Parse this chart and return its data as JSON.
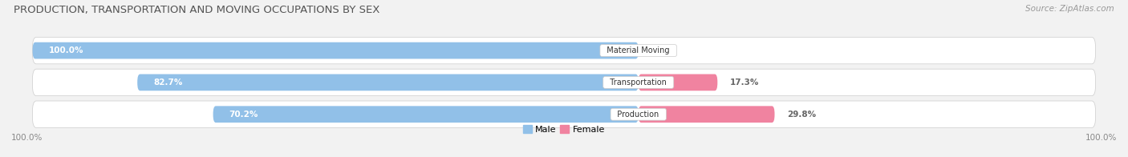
{
  "title": "PRODUCTION, TRANSPORTATION AND MOVING OCCUPATIONS BY SEX",
  "source": "Source: ZipAtlas.com",
  "categories": [
    "Material Moving",
    "Transportation",
    "Production"
  ],
  "male_values": [
    100.0,
    82.7,
    70.2
  ],
  "female_values": [
    0.0,
    17.3,
    29.8
  ],
  "male_color": "#91c0e8",
  "female_color": "#f083a0",
  "bg_color": "#f2f2f2",
  "bar_bg_color": "#e0e0e0",
  "row_bg_color": "#e8e8e8",
  "title_fontsize": 9.5,
  "source_fontsize": 7.5,
  "bar_label_fontsize": 7.5,
  "category_label_fontsize": 7.0,
  "axis_label_fontsize": 7.5,
  "legend_fontsize": 8,
  "bar_height": 0.52,
  "left_axis_label": "100.0%",
  "right_axis_label": "100.0%"
}
